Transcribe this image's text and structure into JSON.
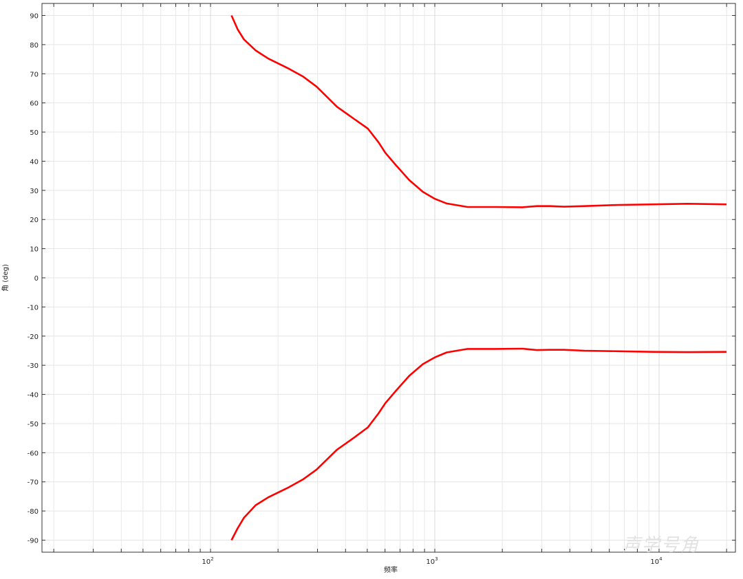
{
  "chart_data": {
    "type": "line",
    "xlabel": "频率",
    "ylabel": "角 (deg)",
    "xscale": "log",
    "xlim": [
      17.7,
      21800
    ],
    "ylim": [
      -94,
      94
    ],
    "grid": true,
    "yticks": [
      90,
      80,
      70,
      60,
      50,
      40,
      30,
      20,
      10,
      0,
      -10,
      -20,
      -30,
      -40,
      -50,
      -60,
      -70,
      -80,
      -90
    ],
    "xtick_labels": [
      {
        "base": "10",
        "exp": "2",
        "value": 100
      },
      {
        "base": "10",
        "exp": "3",
        "value": 1000
      },
      {
        "base": "10",
        "exp": "4",
        "value": 10000
      }
    ],
    "line_color": "#ff0000",
    "series": [
      {
        "x": [
          124,
          132,
          141,
          159,
          181,
          224,
          258,
          297,
          366,
          437,
          503,
          561,
          602,
          670,
          770,
          885,
          1000,
          1130,
          1400,
          1860,
          2460,
          2850,
          3260,
          3770,
          4650,
          6600,
          9400,
          13400,
          20000
        ],
        "y": [
          90,
          85.3,
          81.8,
          78,
          75.2,
          71.7,
          69.1,
          65.6,
          58.7,
          54.5,
          51.2,
          46.5,
          42.9,
          38.7,
          33.5,
          29.5,
          27.1,
          25.5,
          24.3,
          24.3,
          24.2,
          24.6,
          24.6,
          24.4,
          24.6,
          25,
          25.2,
          25.4,
          25.2
        ]
      },
      {
        "x": [
          124,
          132,
          141,
          159,
          181,
          224,
          258,
          297,
          366,
          437,
          503,
          561,
          602,
          670,
          770,
          885,
          1000,
          1130,
          1400,
          1860,
          2460,
          2850,
          3260,
          3770,
          4650,
          6600,
          9400,
          13400,
          20000
        ],
        "y": [
          -90,
          -86,
          -82.3,
          -78,
          -75.3,
          -71.8,
          -69.2,
          -65.8,
          -59,
          -54.8,
          -51.3,
          -46.5,
          -43,
          -38.8,
          -33.6,
          -29.6,
          -27.3,
          -25.6,
          -24.4,
          -24.4,
          -24.3,
          -24.8,
          -24.7,
          -24.7,
          -25,
          -25.2,
          -25.4,
          -25.5,
          -25.4
        ]
      }
    ]
  },
  "watermark": "声学号角"
}
